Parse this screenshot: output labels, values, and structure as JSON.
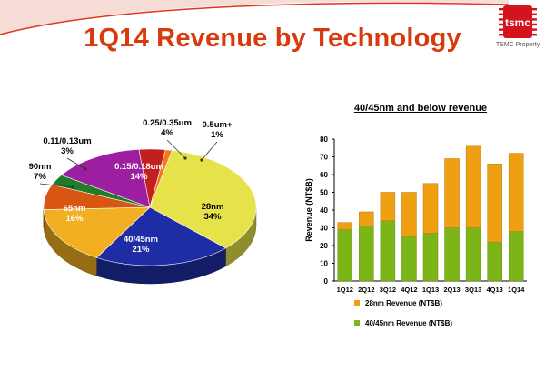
{
  "slide": {
    "title": "1Q14 Revenue by Technology",
    "logo_text": "tsmc",
    "logo_caption": "TSMC Property",
    "colors": {
      "title": "#D83A0E",
      "accent_swoosh": "#E1351B",
      "logo_red": "#D3141F"
    }
  },
  "chart_data": [
    {
      "type": "pie",
      "title": "",
      "slices": [
        {
          "label": "28nm",
          "value": 34,
          "value_label": "34%",
          "color": "#E6E34A"
        },
        {
          "label": "40/45nm",
          "value": 21,
          "value_label": "21%",
          "color": "#1E2DA6"
        },
        {
          "label": "65nm",
          "value": 16,
          "value_label": "16%",
          "color": "#F2AF22"
        },
        {
          "label": "90nm",
          "value": 7,
          "value_label": "7%",
          "color": "#D85512"
        },
        {
          "label": "0.11/0.13um",
          "value": 3,
          "value_label": "3%",
          "color": "#1F7D28"
        },
        {
          "label": "0.15/0.18um",
          "value": 14,
          "value_label": "14%",
          "color": "#9C1FA2"
        },
        {
          "label": "0.25/0.35um",
          "value": 4,
          "value_label": "4%",
          "color": "#C21F1F"
        },
        {
          "label": "0.5um+",
          "value": 1,
          "value_label": "1%",
          "color": "#F07A1E"
        }
      ]
    },
    {
      "type": "bar",
      "stacked": true,
      "title": "40/45nm and below revenue",
      "ylabel": "Revenue (NT$B)",
      "xlabel": "",
      "ylim": [
        0,
        80
      ],
      "yticks": [
        0,
        10,
        20,
        30,
        40,
        50,
        60,
        70,
        80
      ],
      "categories": [
        "1Q12",
        "2Q12",
        "3Q12",
        "4Q12",
        "1Q13",
        "2Q13",
        "3Q13",
        "4Q13",
        "1Q14"
      ],
      "series": [
        {
          "name": "40/45nm Revenue (NT$B)",
          "color": "#7CB518",
          "values": [
            29,
            31,
            34,
            25,
            27,
            30,
            30,
            22,
            28
          ]
        },
        {
          "name": "28nm Revenue (NT$B)",
          "color": "#EE9F12",
          "values": [
            4,
            8,
            16,
            25,
            28,
            39,
            46,
            44,
            44
          ]
        }
      ],
      "legend": [
        {
          "label": "28nm Revenue (NT$B)",
          "color": "#EE9F12"
        },
        {
          "label": "40/45nm Revenue (NT$B)",
          "color": "#7CB518"
        }
      ],
      "legend_position": "bottom",
      "grid": false
    }
  ]
}
